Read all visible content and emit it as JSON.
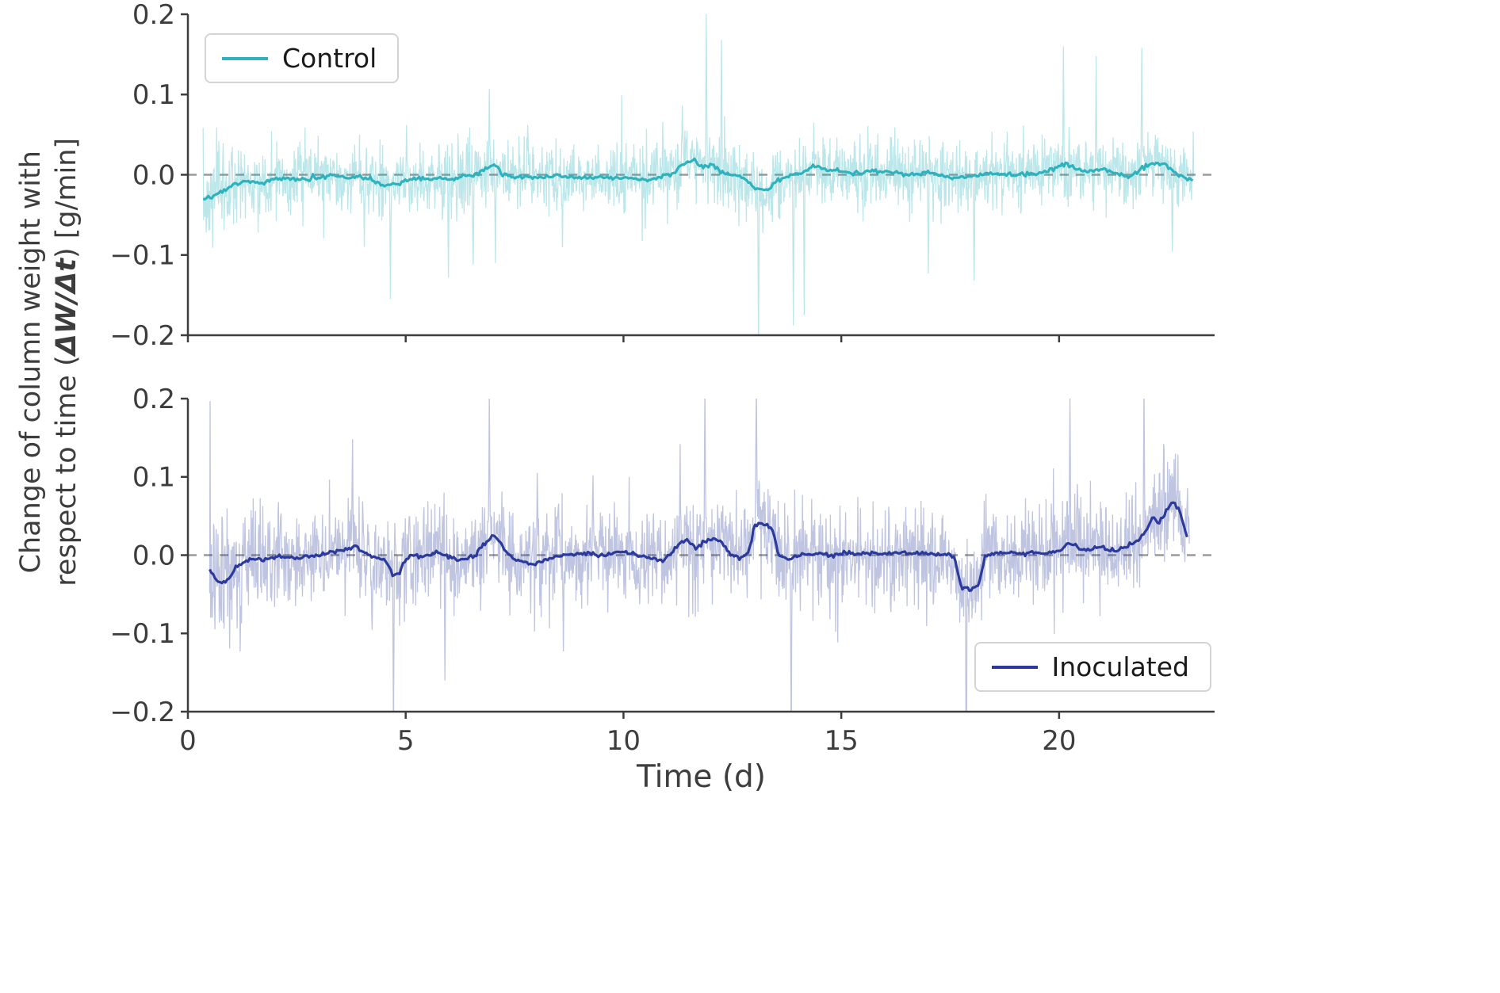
{
  "figure": {
    "xlabel": "Time (d)",
    "ylabel_line1": "Change of column weight with",
    "ylabel_line2_pre": "respect to time (",
    "ylabel_math": "ΔW/Δt",
    "ylabel_line2_post": ") [g/min]",
    "background": "#ffffff",
    "colors": {
      "zero_line": "#9a9a9a",
      "spine": "#3d3d3d",
      "tick_label": "#3d3d3d"
    }
  },
  "chart_data": [
    {
      "type": "line",
      "id": "control",
      "legend": {
        "label": "Control",
        "position": "top-left"
      },
      "color": "#2eb3be",
      "xlim": [
        0,
        23.57
      ],
      "ylim": [
        -0.2,
        0.2
      ],
      "xticks": [
        0,
        5,
        10,
        15,
        20
      ],
      "xtick_labels": [
        "0",
        "5",
        "10",
        "15",
        "20"
      ],
      "show_xtick_labels": false,
      "yticks": [
        0.2,
        0.1,
        0.0,
        -0.1,
        -0.2
      ],
      "ytick_labels": [
        "0.2",
        "0.1",
        "0.0",
        "−0.1",
        "−0.2"
      ],
      "zero_line_y": 0,
      "raw": {
        "opacity": 0.32,
        "t_start": 0.35,
        "t_end": 23.1,
        "dt": 0.01,
        "std": 0.02,
        "wide_until": 1.2,
        "wide_factor": 1.6,
        "tail_prob": 0.02,
        "tail_mult": 2.2,
        "seed": 7,
        "spikes": [
          [
            0.42,
            -0.072
          ],
          [
            4.05,
            -0.09
          ],
          [
            4.65,
            -0.155
          ],
          [
            5.02,
            0.062
          ],
          [
            5.98,
            -0.128
          ],
          [
            6.55,
            -0.112
          ],
          [
            6.92,
            0.107
          ],
          [
            7.06,
            -0.11
          ],
          [
            7.8,
            0.062
          ],
          [
            10.9,
            0.066
          ],
          [
            11.35,
            0.086
          ],
          [
            11.9,
            0.2
          ],
          [
            12.25,
            0.168
          ],
          [
            13.1,
            -0.21
          ],
          [
            13.9,
            -0.188
          ],
          [
            14.15,
            -0.175
          ],
          [
            17.0,
            -0.123
          ],
          [
            18.05,
            -0.132
          ],
          [
            20.1,
            0.16
          ],
          [
            20.85,
            0.148
          ],
          [
            21.9,
            0.158
          ],
          [
            22.6,
            -0.096
          ]
        ]
      },
      "smoothed": {
        "points": [
          [
            0.35,
            -0.03
          ],
          [
            0.5,
            -0.028
          ],
          [
            0.7,
            -0.022
          ],
          [
            0.9,
            -0.018
          ],
          [
            1.1,
            -0.01
          ],
          [
            1.4,
            -0.008
          ],
          [
            1.7,
            -0.01
          ],
          [
            2.0,
            -0.006
          ],
          [
            2.3,
            -0.004
          ],
          [
            2.6,
            -0.006
          ],
          [
            3.0,
            -0.003
          ],
          [
            3.3,
            -0.001
          ],
          [
            3.6,
            -0.004
          ],
          [
            3.9,
            -0.002
          ],
          [
            4.2,
            -0.006
          ],
          [
            4.5,
            -0.013
          ],
          [
            4.8,
            -0.012
          ],
          [
            5.1,
            -0.004
          ],
          [
            5.4,
            -0.006
          ],
          [
            5.7,
            -0.003
          ],
          [
            6.0,
            -0.006
          ],
          [
            6.3,
            -0.002
          ],
          [
            6.6,
            0.0
          ],
          [
            6.9,
            0.01
          ],
          [
            7.05,
            0.013
          ],
          [
            7.2,
            0.002
          ],
          [
            7.5,
            -0.004
          ],
          [
            7.8,
            -0.002
          ],
          [
            8.1,
            -0.004
          ],
          [
            8.5,
            -0.001
          ],
          [
            9.0,
            -0.004
          ],
          [
            9.5,
            -0.002
          ],
          [
            10.0,
            -0.004
          ],
          [
            10.5,
            -0.006
          ],
          [
            10.8,
            -0.003
          ],
          [
            11.1,
            0.0
          ],
          [
            11.35,
            0.014
          ],
          [
            11.6,
            0.018
          ],
          [
            11.8,
            0.01
          ],
          [
            12.0,
            0.014
          ],
          [
            12.2,
            0.006
          ],
          [
            12.5,
            -0.001
          ],
          [
            12.8,
            -0.004
          ],
          [
            13.0,
            -0.016
          ],
          [
            13.3,
            -0.02
          ],
          [
            13.5,
            -0.008
          ],
          [
            13.8,
            -0.001
          ],
          [
            14.1,
            0.002
          ],
          [
            14.35,
            0.012
          ],
          [
            14.6,
            0.007
          ],
          [
            15.0,
            0.004
          ],
          [
            15.4,
            0.002
          ],
          [
            15.8,
            0.005
          ],
          [
            16.2,
            0.002
          ],
          [
            16.6,
            0.0
          ],
          [
            17.0,
            0.002
          ],
          [
            17.4,
            -0.002
          ],
          [
            17.8,
            -0.004
          ],
          [
            18.1,
            -0.001
          ],
          [
            18.5,
            0.001
          ],
          [
            19.0,
            0.0
          ],
          [
            19.5,
            0.002
          ],
          [
            19.9,
            0.008
          ],
          [
            20.15,
            0.014
          ],
          [
            20.4,
            0.006
          ],
          [
            20.7,
            0.004
          ],
          [
            21.0,
            0.008
          ],
          [
            21.3,
            0.001
          ],
          [
            21.6,
            -0.003
          ],
          [
            21.9,
            0.008
          ],
          [
            22.2,
            0.016
          ],
          [
            22.45,
            0.012
          ],
          [
            22.7,
            0.0
          ],
          [
            22.95,
            -0.006
          ],
          [
            23.1,
            -0.008
          ]
        ]
      }
    },
    {
      "type": "line",
      "id": "inoculated",
      "legend": {
        "label": "Inoculated",
        "position": "bottom-right"
      },
      "color": "#2b3a9c",
      "xlim": [
        0,
        23.57
      ],
      "ylim": [
        -0.2,
        0.2
      ],
      "xticks": [
        0,
        5,
        10,
        15,
        20
      ],
      "xtick_labels": [
        "0",
        "5",
        "10",
        "15",
        "20"
      ],
      "show_xtick_labels": true,
      "yticks": [
        0.2,
        0.1,
        0.0,
        -0.1,
        -0.2
      ],
      "ytick_labels": [
        "0.2",
        "0.1",
        "0.0",
        "−0.1",
        "−0.2"
      ],
      "zero_line_y": 0,
      "raw": {
        "opacity": 0.3,
        "t_start": 0.5,
        "t_end": 23.0,
        "dt": 0.01,
        "std": 0.03,
        "wide_until": 1.3,
        "wide_factor": 1.5,
        "tail_prob": 0.02,
        "tail_mult": 2.0,
        "seed": 13,
        "spikes": [
          [
            0.62,
            -0.095
          ],
          [
            3.78,
            0.148
          ],
          [
            4.72,
            -0.23
          ],
          [
            5.9,
            -0.16
          ],
          [
            6.92,
            0.21
          ],
          [
            8.02,
            0.105
          ],
          [
            8.62,
            -0.123
          ],
          [
            9.3,
            0.102
          ],
          [
            11.3,
            0.142
          ],
          [
            11.87,
            0.215
          ],
          [
            13.05,
            0.215
          ],
          [
            13.85,
            -0.26
          ],
          [
            17.87,
            -0.32
          ],
          [
            20.25,
            0.205
          ],
          [
            21.95,
            0.215
          ],
          [
            22.4,
            0.142
          ]
        ]
      },
      "smoothed": {
        "points": [
          [
            0.5,
            -0.018
          ],
          [
            0.65,
            -0.032
          ],
          [
            0.8,
            -0.036
          ],
          [
            0.95,
            -0.03
          ],
          [
            1.1,
            -0.015
          ],
          [
            1.3,
            -0.008
          ],
          [
            1.5,
            -0.005
          ],
          [
            1.8,
            -0.004
          ],
          [
            2.1,
            -0.002
          ],
          [
            2.4,
            -0.004
          ],
          [
            2.7,
            -0.002
          ],
          [
            3.0,
            0.0
          ],
          [
            3.3,
            0.003
          ],
          [
            3.6,
            0.007
          ],
          [
            3.85,
            0.01
          ],
          [
            4.1,
            0.002
          ],
          [
            4.35,
            -0.003
          ],
          [
            4.55,
            -0.008
          ],
          [
            4.7,
            -0.024
          ],
          [
            4.85,
            -0.022
          ],
          [
            5.0,
            -0.004
          ],
          [
            5.2,
            0.0
          ],
          [
            5.45,
            -0.003
          ],
          [
            5.7,
            0.004
          ],
          [
            5.9,
            0.0
          ],
          [
            6.1,
            -0.004
          ],
          [
            6.35,
            -0.006
          ],
          [
            6.6,
            -0.001
          ],
          [
            6.85,
            0.018
          ],
          [
            7.0,
            0.024
          ],
          [
            7.15,
            0.02
          ],
          [
            7.3,
            0.004
          ],
          [
            7.55,
            -0.006
          ],
          [
            7.8,
            -0.01
          ],
          [
            8.0,
            -0.012
          ],
          [
            8.2,
            -0.006
          ],
          [
            8.5,
            -0.001
          ],
          [
            8.8,
            0.001
          ],
          [
            9.1,
            0.003
          ],
          [
            9.4,
            0.0
          ],
          [
            9.7,
            0.002
          ],
          [
            10.0,
            0.004
          ],
          [
            10.3,
            0.0
          ],
          [
            10.6,
            -0.003
          ],
          [
            10.85,
            -0.008
          ],
          [
            11.05,
            -0.002
          ],
          [
            11.25,
            0.015
          ],
          [
            11.45,
            0.02
          ],
          [
            11.65,
            0.008
          ],
          [
            11.85,
            0.018
          ],
          [
            12.05,
            0.02
          ],
          [
            12.25,
            0.018
          ],
          [
            12.45,
            0.0
          ],
          [
            12.65,
            -0.003
          ],
          [
            12.85,
            0.0
          ],
          [
            13.0,
            0.038
          ],
          [
            13.15,
            0.042
          ],
          [
            13.3,
            0.038
          ],
          [
            13.45,
            0.03
          ],
          [
            13.55,
            0.0
          ],
          [
            13.75,
            -0.006
          ],
          [
            13.95,
            -0.002
          ],
          [
            14.2,
            0.0
          ],
          [
            14.5,
            0.002
          ],
          [
            14.8,
            0.0
          ],
          [
            15.1,
            0.003
          ],
          [
            15.4,
            0.001
          ],
          [
            15.7,
            0.003
          ],
          [
            16.0,
            0.001
          ],
          [
            16.3,
            0.004
          ],
          [
            16.6,
            0.002
          ],
          [
            16.9,
            0.003
          ],
          [
            17.2,
            0.001
          ],
          [
            17.45,
            0.0
          ],
          [
            17.6,
            -0.003
          ],
          [
            17.75,
            -0.04
          ],
          [
            17.95,
            -0.044
          ],
          [
            18.15,
            -0.04
          ],
          [
            18.3,
            -0.002
          ],
          [
            18.5,
            0.002
          ],
          [
            18.8,
            0.003
          ],
          [
            19.1,
            0.001
          ],
          [
            19.4,
            0.003
          ],
          [
            19.7,
            0.002
          ],
          [
            20.0,
            0.006
          ],
          [
            20.2,
            0.016
          ],
          [
            20.4,
            0.012
          ],
          [
            20.6,
            0.006
          ],
          [
            20.85,
            0.01
          ],
          [
            21.1,
            0.008
          ],
          [
            21.35,
            0.006
          ],
          [
            21.6,
            0.012
          ],
          [
            21.8,
            0.018
          ],
          [
            22.0,
            0.03
          ],
          [
            22.15,
            0.048
          ],
          [
            22.3,
            0.042
          ],
          [
            22.45,
            0.055
          ],
          [
            22.6,
            0.068
          ],
          [
            22.75,
            0.06
          ],
          [
            22.85,
            0.04
          ],
          [
            22.95,
            0.022
          ]
        ]
      }
    }
  ]
}
